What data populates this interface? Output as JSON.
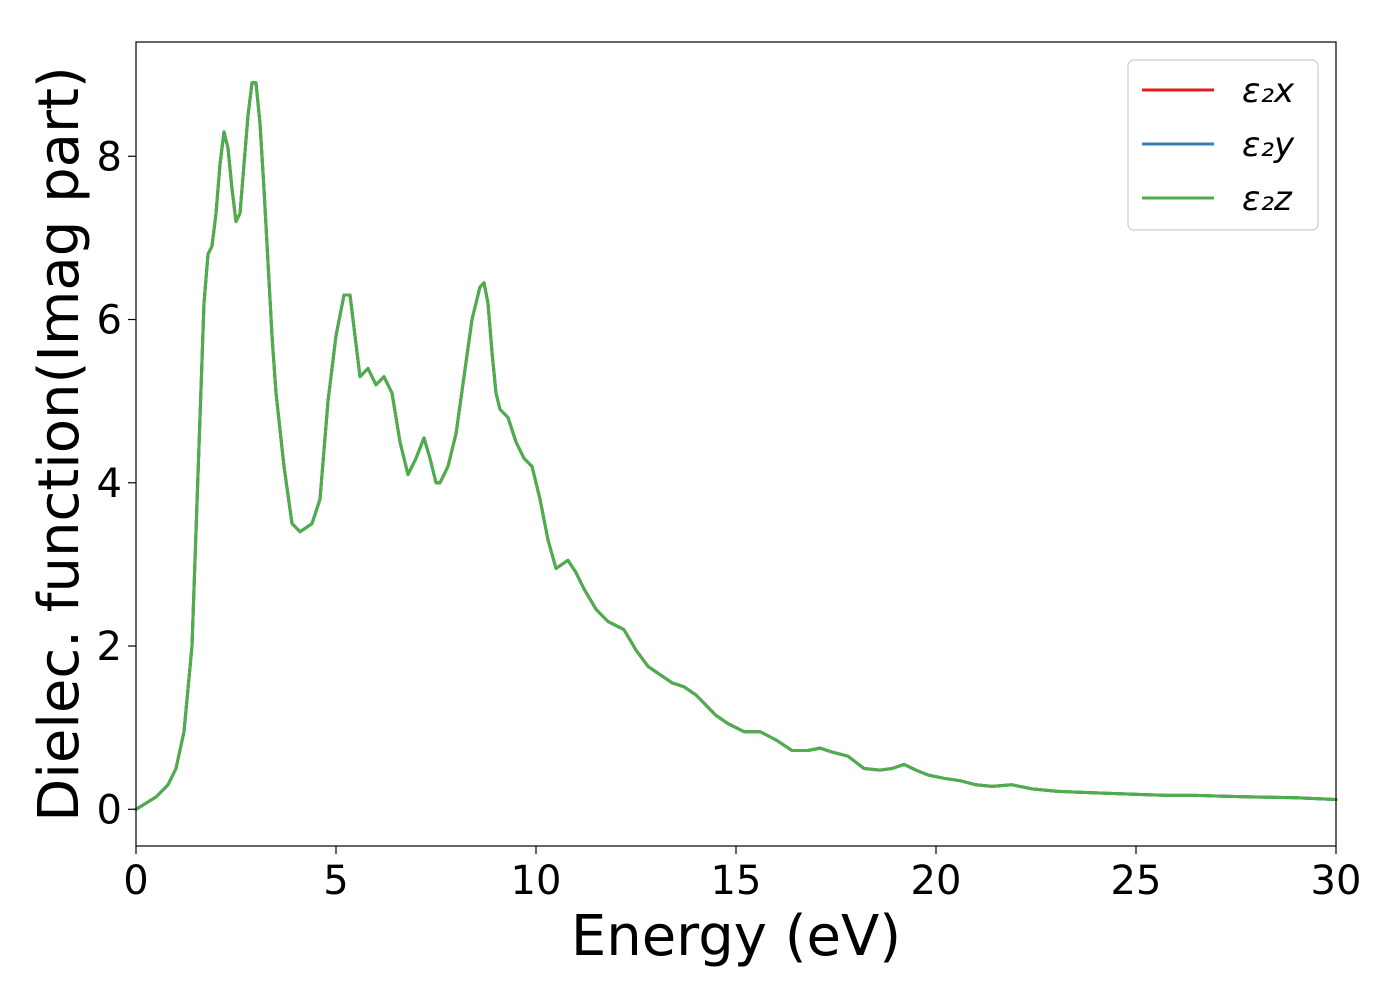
{
  "chart_data": {
    "type": "line",
    "title": "",
    "xlabel": "Energy (eV)",
    "ylabel": "Dielec. function(Imag part)",
    "xlim": [
      0,
      30
    ],
    "ylim": [
      -0.45,
      9.4
    ],
    "xticks": [
      0,
      5,
      10,
      15,
      20,
      25,
      30
    ],
    "yticks": [
      0,
      2,
      4,
      6,
      8
    ],
    "grid": false,
    "legend_position": "top-right",
    "x": [
      0,
      0.5,
      0.8,
      1.0,
      1.2,
      1.4,
      1.6,
      1.7,
      1.8,
      1.9,
      2.0,
      2.1,
      2.2,
      2.3,
      2.4,
      2.5,
      2.6,
      2.7,
      2.8,
      2.9,
      3.0,
      3.1,
      3.2,
      3.3,
      3.4,
      3.5,
      3.7,
      3.9,
      4.1,
      4.25,
      4.4,
      4.6,
      4.8,
      5.0,
      5.2,
      5.35,
      5.5,
      5.6,
      5.8,
      6.0,
      6.2,
      6.4,
      6.6,
      6.8,
      7.0,
      7.2,
      7.35,
      7.5,
      7.6,
      7.8,
      8.0,
      8.2,
      8.4,
      8.6,
      8.7,
      8.8,
      8.9,
      9.0,
      9.1,
      9.3,
      9.5,
      9.7,
      9.9,
      10.1,
      10.3,
      10.5,
      10.8,
      11.0,
      11.2,
      11.5,
      11.8,
      12.2,
      12.5,
      12.8,
      13.1,
      13.4,
      13.7,
      14.0,
      14.2,
      14.5,
      14.8,
      15.2,
      15.6,
      16.0,
      16.4,
      16.8,
      17.1,
      17.4,
      17.8,
      18.2,
      18.6,
      18.9,
      19.2,
      19.5,
      19.8,
      20.2,
      20.6,
      21.0,
      21.4,
      21.9,
      22.4,
      23.0,
      23.5,
      24.0,
      24.6,
      25.2,
      25.8,
      26.5,
      27.2,
      28.0,
      29.0,
      30.0
    ],
    "series": [
      {
        "name": "ε₂x",
        "color": "#e41a1c",
        "y": [
          0.0,
          0.15,
          0.3,
          0.5,
          0.95,
          2.0,
          4.8,
          6.2,
          6.8,
          6.9,
          7.3,
          7.9,
          8.3,
          8.1,
          7.6,
          7.2,
          7.3,
          7.9,
          8.5,
          8.9,
          8.9,
          8.4,
          7.6,
          6.7,
          5.8,
          5.1,
          4.2,
          3.5,
          3.4,
          3.45,
          3.5,
          3.8,
          5.0,
          5.8,
          6.3,
          6.3,
          5.7,
          5.3,
          5.4,
          5.2,
          5.3,
          5.1,
          4.5,
          4.1,
          4.3,
          4.55,
          4.3,
          4.0,
          4.0,
          4.2,
          4.6,
          5.3,
          6.0,
          6.4,
          6.45,
          6.2,
          5.6,
          5.1,
          4.9,
          4.8,
          4.5,
          4.3,
          4.2,
          3.8,
          3.3,
          2.95,
          3.05,
          2.9,
          2.7,
          2.45,
          2.3,
          2.2,
          1.95,
          1.75,
          1.65,
          1.55,
          1.5,
          1.4,
          1.3,
          1.15,
          1.05,
          0.95,
          0.95,
          0.85,
          0.72,
          0.72,
          0.75,
          0.7,
          0.65,
          0.5,
          0.48,
          0.5,
          0.55,
          0.48,
          0.42,
          0.38,
          0.35,
          0.3,
          0.28,
          0.3,
          0.25,
          0.22,
          0.21,
          0.2,
          0.19,
          0.18,
          0.17,
          0.17,
          0.16,
          0.15,
          0.14,
          0.12
        ]
      },
      {
        "name": "ε₂y",
        "color": "#377eb8",
        "y": [
          0.0,
          0.15,
          0.3,
          0.5,
          0.95,
          2.0,
          4.8,
          6.2,
          6.8,
          6.9,
          7.3,
          7.9,
          8.3,
          8.1,
          7.6,
          7.2,
          7.3,
          7.9,
          8.5,
          8.9,
          8.9,
          8.4,
          7.6,
          6.7,
          5.8,
          5.1,
          4.2,
          3.5,
          3.4,
          3.45,
          3.5,
          3.8,
          5.0,
          5.8,
          6.3,
          6.3,
          5.7,
          5.3,
          5.4,
          5.2,
          5.3,
          5.1,
          4.5,
          4.1,
          4.3,
          4.55,
          4.3,
          4.0,
          4.0,
          4.2,
          4.6,
          5.3,
          6.0,
          6.4,
          6.45,
          6.2,
          5.6,
          5.1,
          4.9,
          4.8,
          4.5,
          4.3,
          4.2,
          3.8,
          3.3,
          2.95,
          3.05,
          2.9,
          2.7,
          2.45,
          2.3,
          2.2,
          1.95,
          1.75,
          1.65,
          1.55,
          1.5,
          1.4,
          1.3,
          1.15,
          1.05,
          0.95,
          0.95,
          0.85,
          0.72,
          0.72,
          0.75,
          0.7,
          0.65,
          0.5,
          0.48,
          0.5,
          0.55,
          0.48,
          0.42,
          0.38,
          0.35,
          0.3,
          0.28,
          0.3,
          0.25,
          0.22,
          0.21,
          0.2,
          0.19,
          0.18,
          0.17,
          0.17,
          0.16,
          0.15,
          0.14,
          0.12
        ]
      },
      {
        "name": "ε₂z",
        "color": "#4daf4a",
        "y": [
          0.0,
          0.15,
          0.3,
          0.5,
          0.95,
          2.0,
          4.8,
          6.2,
          6.8,
          6.9,
          7.3,
          7.9,
          8.3,
          8.1,
          7.6,
          7.2,
          7.3,
          7.9,
          8.5,
          8.9,
          8.9,
          8.4,
          7.6,
          6.7,
          5.8,
          5.1,
          4.2,
          3.5,
          3.4,
          3.45,
          3.5,
          3.8,
          5.0,
          5.8,
          6.3,
          6.3,
          5.7,
          5.3,
          5.4,
          5.2,
          5.3,
          5.1,
          4.5,
          4.1,
          4.3,
          4.55,
          4.3,
          4.0,
          4.0,
          4.2,
          4.6,
          5.3,
          6.0,
          6.4,
          6.45,
          6.2,
          5.6,
          5.1,
          4.9,
          4.8,
          4.5,
          4.3,
          4.2,
          3.8,
          3.3,
          2.95,
          3.05,
          2.9,
          2.7,
          2.45,
          2.3,
          2.2,
          1.95,
          1.75,
          1.65,
          1.55,
          1.5,
          1.4,
          1.3,
          1.15,
          1.05,
          0.95,
          0.95,
          0.85,
          0.72,
          0.72,
          0.75,
          0.7,
          0.65,
          0.5,
          0.48,
          0.5,
          0.55,
          0.48,
          0.42,
          0.38,
          0.35,
          0.3,
          0.28,
          0.3,
          0.25,
          0.22,
          0.21,
          0.2,
          0.19,
          0.18,
          0.17,
          0.17,
          0.16,
          0.15,
          0.14,
          0.12
        ]
      }
    ]
  }
}
